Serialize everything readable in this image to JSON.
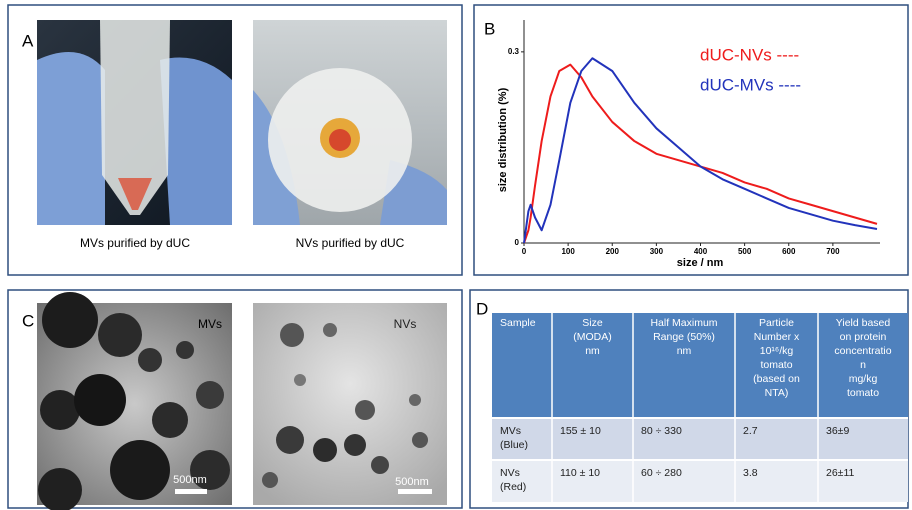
{
  "panel_a": {
    "label": "A",
    "captions": [
      "MVs purified by dUC",
      "NVs purified by dUC"
    ]
  },
  "chart_data": {
    "type": "line",
    "panel_label": "B",
    "x_label": "size / nm",
    "y_label": "size distribution  (%)",
    "x": [
      0,
      10,
      15,
      25,
      40,
      60,
      80,
      105,
      130,
      155,
      200,
      250,
      300,
      350,
      400,
      450,
      500,
      550,
      600,
      650,
      700,
      750,
      800
    ],
    "series": [
      {
        "name": "dUC-NVs ----",
        "color": "#ee1c1c",
        "values": [
          0,
          0.02,
          0.04,
          0.09,
          0.16,
          0.23,
          0.27,
          0.28,
          0.26,
          0.23,
          0.19,
          0.16,
          0.14,
          0.13,
          0.12,
          0.11,
          0.095,
          0.085,
          0.07,
          0.06,
          0.05,
          0.04,
          0.03
        ]
      },
      {
        "name": "dUC-MVs ----",
        "color": "#2233bb",
        "values": [
          0,
          0.05,
          0.06,
          0.04,
          0.02,
          0.06,
          0.13,
          0.22,
          0.27,
          0.29,
          0.27,
          0.22,
          0.18,
          0.15,
          0.12,
          0.1,
          0.085,
          0.07,
          0.055,
          0.045,
          0.035,
          0.028,
          0.022
        ]
      }
    ],
    "xlim": [
      0,
      800
    ],
    "ylim": [
      0,
      0.35
    ],
    "xticks": [
      0,
      100,
      200,
      300,
      400,
      500,
      600,
      700
    ],
    "yticks": [
      0,
      0.3
    ]
  },
  "panel_c": {
    "label": "C",
    "image_labels": [
      "MVs",
      "NVs"
    ],
    "scale_bars": [
      "500nm",
      "500nm"
    ]
  },
  "panel_d": {
    "label": "D",
    "header": [
      [
        "Sample"
      ],
      [
        "Size",
        "(MODA)",
        "nm"
      ],
      [
        "Half Maximum",
        "Range (50%)",
        "nm"
      ],
      [
        "Particle",
        "Number x",
        "10¹⁶/kg",
        "tomato",
        "(based on",
        "NTA)"
      ],
      [
        "Yield based",
        "on protein",
        "concentratio",
        "n",
        "mg/kg",
        "tomato"
      ]
    ],
    "rows": [
      [
        [
          "MVs",
          "(Blue)"
        ],
        [
          "155 ± 10"
        ],
        [
          "80 ÷ 330"
        ],
        [
          "2.7"
        ],
        [
          "36±9"
        ]
      ],
      [
        [
          "NVs",
          "(Red)"
        ],
        [
          "110 ± 10"
        ],
        [
          "60 ÷ 280"
        ],
        [
          "3.8"
        ],
        [
          "26±11"
        ]
      ]
    ]
  }
}
